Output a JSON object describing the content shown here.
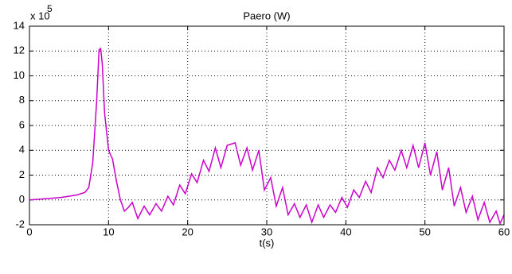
{
  "chart_data": {
    "type": "line",
    "title": "Paero (W)",
    "xlabel": "t(s)",
    "y_exponent_label": "x 10",
    "y_exponent": "5",
    "color": "#cc00cc",
    "grid": true,
    "xlim": [
      0,
      60
    ],
    "xticks": [
      0,
      10,
      20,
      30,
      40,
      50,
      60
    ],
    "ylim": [
      -2,
      14
    ],
    "yticks": [
      -2,
      0,
      2,
      4,
      6,
      8,
      10,
      12,
      14
    ],
    "x": [
      0,
      2,
      4,
      6,
      7,
      7.5,
      8,
      8.5,
      8.8,
      9.0,
      9.2,
      9.5,
      10,
      10.5,
      11,
      11.5,
      12,
      12.5,
      13,
      13.7,
      14.5,
      15.2,
      16,
      16.7,
      17.5,
      18.2,
      19,
      19.7,
      20.5,
      21.2,
      22,
      22.7,
      23.5,
      24.2,
      25,
      26,
      26.7,
      27.5,
      28.2,
      29,
      29.7,
      30.5,
      31.2,
      32,
      32.7,
      33.5,
      34.2,
      35,
      35.7,
      36.5,
      37.2,
      38,
      38.7,
      39.5,
      40.2,
      41,
      41.7,
      42.5,
      43.2,
      44,
      44.7,
      45.5,
      46.2,
      47,
      47.7,
      48.5,
      49.2,
      50,
      50.7,
      51.5,
      52.2,
      53,
      53.7,
      54.5,
      55.2,
      56,
      56.7,
      57.5,
      58.2,
      59,
      59.5,
      60
    ],
    "values": [
      0,
      0.1,
      0.2,
      0.4,
      0.6,
      1.0,
      3,
      8,
      12.1,
      12.2,
      11,
      7,
      4,
      3.3,
      1.5,
      0,
      -0.9,
      -0.6,
      -0.2,
      -1.5,
      -0.5,
      -1.2,
      -0.3,
      -0.9,
      0.3,
      -0.4,
      1.2,
      0.5,
      2.1,
      1.4,
      3.2,
      2.3,
      4.2,
      2.6,
      4.4,
      4.6,
      2.8,
      4.2,
      2.4,
      4.0,
      0.8,
      1.8,
      -0.5,
      1.0,
      -1.2,
      -0.3,
      -1.4,
      -0.4,
      -1.8,
      -0.4,
      -1.4,
      -0.4,
      -1.0,
      0.2,
      -0.6,
      0.8,
      0.2,
      1.5,
      0.6,
      2.6,
      1.8,
      3.2,
      2.4,
      4.0,
      2.6,
      4.4,
      2.6,
      4.6,
      2.0,
      3.9,
      0.8,
      2.6,
      -0.5,
      1.0,
      -1.0,
      0.3,
      -1.6,
      -0.2,
      -1.8,
      -0.9,
      -1.9,
      -1.2
    ]
  }
}
